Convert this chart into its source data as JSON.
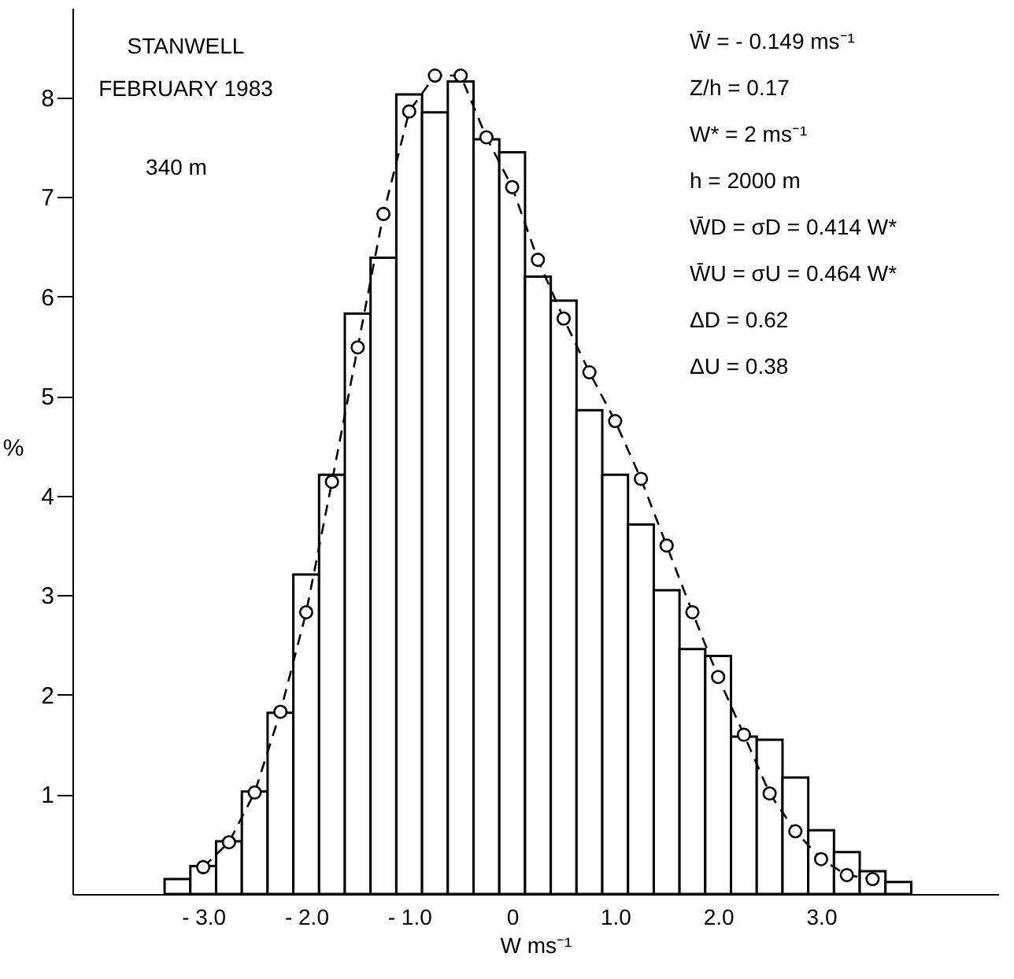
{
  "chart_data": {
    "type": "histogram",
    "xlabel": "W ms⁻¹",
    "ylabel": "%",
    "bins": [
      -3.375,
      -3.125,
      -2.875,
      -2.625,
      -2.375,
      -2.125,
      -1.875,
      -1.625,
      -1.375,
      -1.125,
      -0.875,
      -0.625,
      -0.375,
      -0.125,
      0.125,
      0.375,
      0.625,
      0.875,
      1.125,
      1.375,
      1.625,
      1.875,
      2.125,
      2.375,
      2.625,
      2.875,
      3.125,
      3.375,
      3.625,
      3.875
    ],
    "values": [
      0.15,
      0.28,
      0.53,
      1.03,
      1.82,
      3.21,
      4.21,
      5.83,
      6.39,
      8.03,
      7.85,
      8.16,
      7.58,
      7.45,
      6.2,
      5.96,
      4.86,
      4.21,
      3.71,
      3.05,
      2.46,
      2.39,
      1.58,
      1.55,
      1.17,
      0.64,
      0.42,
      0.23,
      0.12
    ],
    "color": "#ffffff",
    "series": [
      {
        "type": "line",
        "color": "#000000",
        "marker": "circle",
        "line_style": "dashed",
        "x": [
          -3.0,
          -2.75,
          -2.5,
          -2.25,
          -2.0,
          -1.75,
          -1.5,
          -1.25,
          -1.0,
          -0.75,
          -0.5,
          -0.25,
          0,
          0.25,
          0.5,
          0.75,
          1.0,
          1.25,
          1.5,
          1.75,
          2.0,
          2.25,
          2.5,
          2.75,
          3.0,
          3.25,
          3.5
        ],
        "values": [
          0.27,
          0.52,
          1.02,
          1.83,
          2.83,
          4.14,
          5.49,
          6.83,
          7.86,
          8.22,
          8.22,
          7.6,
          7.1,
          6.37,
          5.78,
          5.24,
          4.75,
          4.17,
          3.5,
          2.83,
          2.18,
          1.6,
          1.01,
          0.63,
          0.35,
          0.19,
          0.15
        ]
      }
    ],
    "xlim": [
      -4.27,
      4.72
    ],
    "ylim": [
      0,
      8.9
    ],
    "xticks": [
      {
        "value": -3,
        "label": "- 3.0"
      },
      {
        "value": -2,
        "label": "- 2.0"
      },
      {
        "value": -1,
        "label": "- 1.0"
      },
      0,
      {
        "value": 1,
        "label": "1.0"
      },
      {
        "value": 2,
        "label": "2.0"
      },
      {
        "value": 3,
        "label": "3.0"
      }
    ],
    "yticks": [
      1,
      2,
      3,
      4,
      5,
      6,
      7,
      8
    ],
    "annotations": [
      "STANWELL",
      "FEBRUARY 1983",
      "340 m",
      "W̄ = - 0.149 ms⁻¹",
      "Z/h = 0.17",
      "W* = 2 ms⁻¹",
      "h = 2000 m",
      "W̄D = σD = 0.414 W*",
      "W̄U = σU = 0.464 W*",
      "ΔD = 0.62",
      "ΔU = 0.38"
    ]
  }
}
